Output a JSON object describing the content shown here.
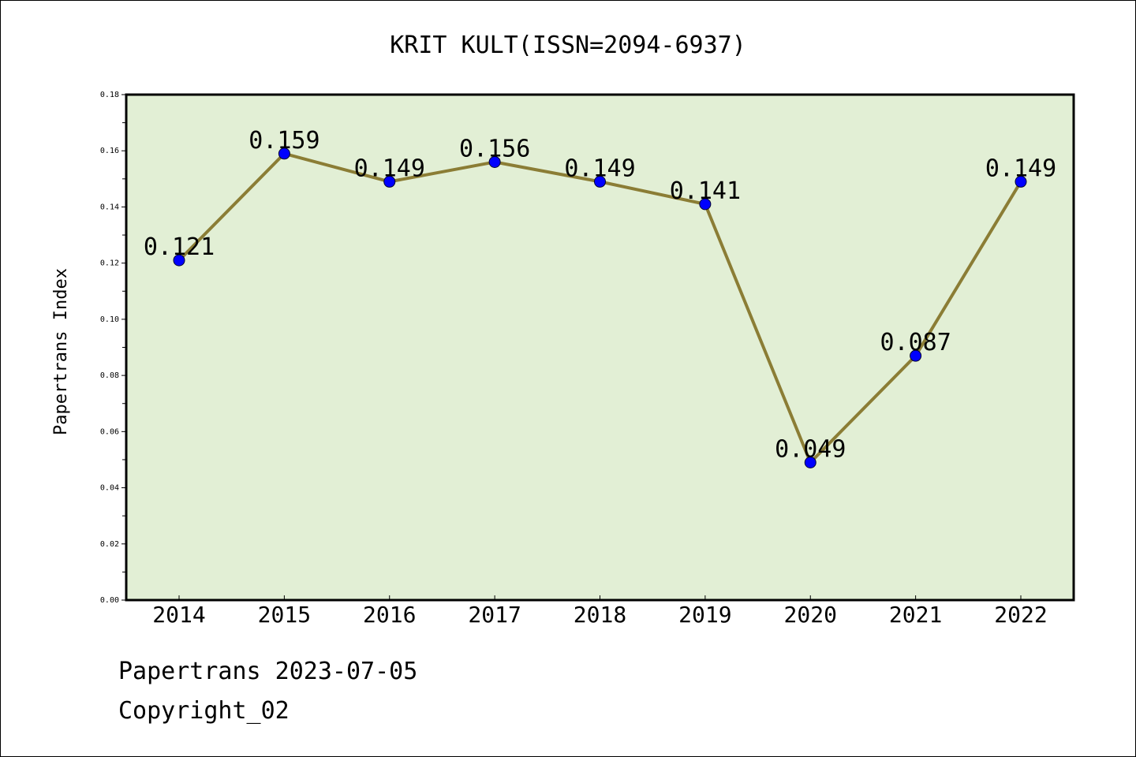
{
  "chart_data": {
    "type": "line",
    "title": "KRIT KULT(ISSN=2094-6937)",
    "xlabel": "",
    "ylabel": "Papertrans Index",
    "categories": [
      "2014",
      "2015",
      "2016",
      "2017",
      "2018",
      "2019",
      "2020",
      "2021",
      "2022"
    ],
    "values": [
      0.121,
      0.159,
      0.149,
      0.156,
      0.149,
      0.141,
      0.049,
      0.087,
      0.149
    ],
    "data_labels": [
      "0.121",
      "0.159",
      "0.149",
      "0.156",
      "0.149",
      "0.141",
      "0.049",
      "0.087",
      "0.149"
    ],
    "ylim": [
      0,
      0.18
    ],
    "yticks": [
      "0.00",
      "0.02",
      "0.04",
      "0.06",
      "0.08",
      "0.10",
      "0.12",
      "0.14",
      "0.16",
      "0.18"
    ],
    "grid": false,
    "legend": "none",
    "colors": {
      "line": "#8B7D35",
      "marker": "#0000FF",
      "plot_background": "#E2EFD5",
      "axes": "#000000"
    }
  },
  "footer": {
    "date_text": "Papertrans 2023-07-05",
    "copyright_text": "Copyright_02"
  }
}
